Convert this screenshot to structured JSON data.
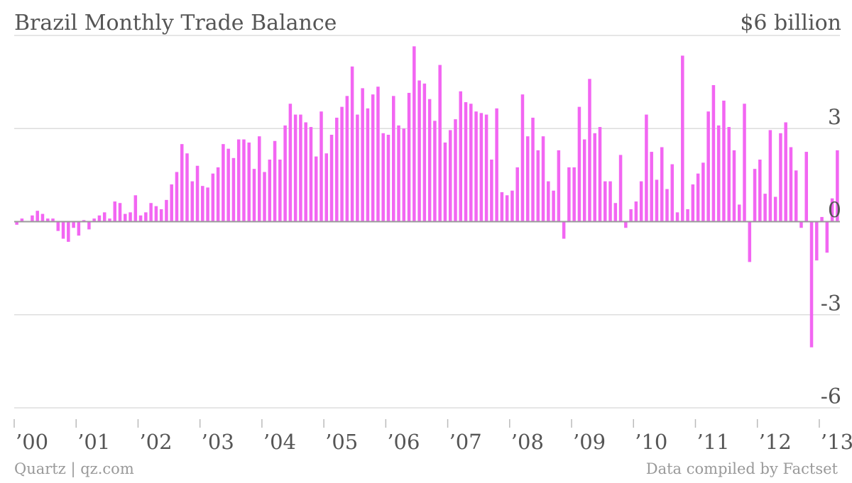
{
  "chart_data": {
    "type": "bar",
    "title": "Brazil Monthly Trade Balance",
    "unit_label": "$6 billion",
    "yticks": [
      6,
      3,
      0,
      -3,
      -6
    ],
    "ytick_labels": [
      "$6 billion",
      "3",
      "0",
      "-3",
      "-6"
    ],
    "ylim": [
      -6,
      6
    ],
    "xlabel": "",
    "ylabel": "",
    "grid": true,
    "color": "#f266f2",
    "start": "2000-01",
    "x_tick_labels": [
      "’00",
      "’01",
      "’02",
      "’03",
      "’04",
      "’05",
      "’06",
      "’07",
      "’08",
      "’09",
      "’10",
      "’11",
      "’12",
      "’13"
    ],
    "values": [
      -0.1,
      0.1,
      0.0,
      0.2,
      0.35,
      0.25,
      0.1,
      0.1,
      -0.3,
      -0.55,
      -0.65,
      -0.2,
      -0.45,
      0.05,
      -0.25,
      0.1,
      0.2,
      0.3,
      0.1,
      0.65,
      0.6,
      0.25,
      0.3,
      0.85,
      0.2,
      0.3,
      0.6,
      0.5,
      0.4,
      0.7,
      1.2,
      1.6,
      2.5,
      2.2,
      1.3,
      1.8,
      1.15,
      1.1,
      1.55,
      1.75,
      2.5,
      2.35,
      2.05,
      2.65,
      2.65,
      2.55,
      1.7,
      2.75,
      1.6,
      2.0,
      2.6,
      2.0,
      3.1,
      3.8,
      3.45,
      3.45,
      3.2,
      3.05,
      2.1,
      3.55,
      2.2,
      2.8,
      3.35,
      3.7,
      4.05,
      5.0,
      3.45,
      4.3,
      3.65,
      4.1,
      4.35,
      2.85,
      2.8,
      4.05,
      3.1,
      3.0,
      4.15,
      5.65,
      4.55,
      4.45,
      3.95,
      3.25,
      5.05,
      2.55,
      2.95,
      3.3,
      4.2,
      3.85,
      3.8,
      3.55,
      3.5,
      3.45,
      2.0,
      3.65,
      0.95,
      0.85,
      1.0,
      1.75,
      4.1,
      2.75,
      3.35,
      2.3,
      2.75,
      1.3,
      1.0,
      2.3,
      -0.55,
      1.75,
      1.75,
      3.7,
      2.65,
      4.6,
      2.85,
      3.05,
      1.3,
      1.3,
      0.6,
      2.15,
      -0.2,
      0.4,
      0.65,
      1.3,
      3.45,
      2.25,
      1.35,
      2.4,
      1.05,
      1.85,
      0.3,
      5.35,
      0.4,
      1.2,
      1.55,
      1.9,
      3.55,
      4.4,
      3.1,
      3.9,
      3.05,
      2.3,
      0.55,
      3.8,
      -1.3,
      1.7,
      2.0,
      0.9,
      2.95,
      0.8,
      2.85,
      3.2,
      2.4,
      1.65,
      -0.2,
      2.25,
      -4.05,
      -1.25,
      0.15,
      -1.0,
      0.75,
      2.3
    ]
  },
  "footer": {
    "source_left": "Quartz | qz.com",
    "source_right": "Data compiled by Factset"
  }
}
